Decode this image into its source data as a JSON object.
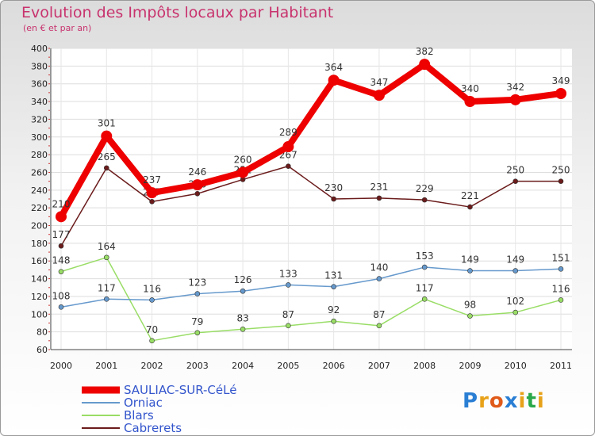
{
  "chart_data": {
    "type": "line",
    "title": "Evolution des Impôts locaux par Habitant",
    "subtitle": "(en € et par an)",
    "xlabel": "",
    "ylabel": "",
    "ylim": [
      60,
      400
    ],
    "yticks": [
      60,
      80,
      100,
      120,
      140,
      160,
      180,
      200,
      220,
      240,
      260,
      280,
      300,
      320,
      340,
      360,
      380,
      400
    ],
    "x": [
      "2000",
      "2001",
      "2002",
      "2003",
      "2004",
      "2005",
      "2006",
      "2007",
      "2008",
      "2009",
      "2010",
      "2011"
    ],
    "series": [
      {
        "name": "Cabrerets",
        "color": "#6b1b1b",
        "values": [
          177,
          265,
          227,
          236,
          252,
          267,
          230,
          231,
          229,
          221,
          250,
          250
        ]
      },
      {
        "name": "Blars",
        "color": "#99dd66",
        "values": [
          148,
          164,
          70,
          79,
          83,
          87,
          92,
          87,
          117,
          98,
          102,
          116
        ]
      },
      {
        "name": "Orniac",
        "color": "#6699cc",
        "values": [
          108,
          117,
          116,
          123,
          126,
          133,
          131,
          140,
          153,
          149,
          149,
          151
        ]
      },
      {
        "name": "SAULIAC-SUR-CéLé",
        "color": "#ee0000",
        "values": [
          210,
          301,
          237,
          246,
          260,
          289,
          364,
          347,
          382,
          340,
          342,
          349
        ]
      }
    ],
    "legend_order": [
      "SAULIAC-SUR-CéLé",
      "Orniac",
      "Blars",
      "Cabrerets"
    ],
    "legend_position": "bottom-left"
  },
  "logo": {
    "letters": [
      "P",
      "r",
      "o",
      "x",
      "i",
      "t",
      "i"
    ],
    "colors": [
      "#2a7fd4",
      "#e8a21a",
      "#e05a1a",
      "#2a7fd4",
      "#e8a21a",
      "#2aa84a",
      "#e8a21a"
    ]
  }
}
